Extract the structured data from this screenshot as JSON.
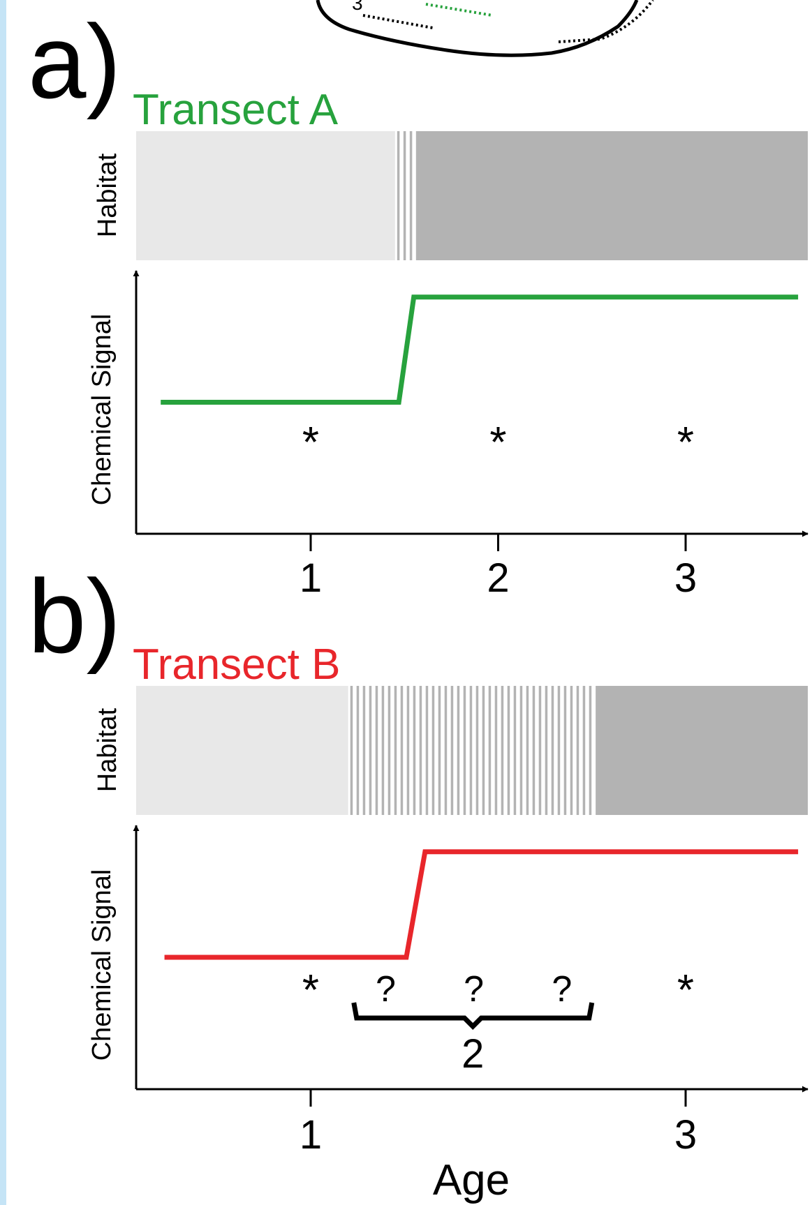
{
  "colors": {
    "side_bar": "#c5e4f6",
    "habitat_light": "#e8e8e8",
    "habitat_dark": "#b3b3b3",
    "transect_a": "#27a23d",
    "transect_b": "#e8262b"
  },
  "map_fragment": {
    "visible_label": "3",
    "icon": "seafloor-map-outline-icon"
  },
  "panels": [
    {
      "letter": "a)",
      "title": "Transect A",
      "habitat_label": "Habitat",
      "signal_label": "Chemical Signal",
      "habitat": {
        "light_until": 1.45,
        "transition_until": 1.57,
        "note": ""
      },
      "signal": {
        "low_level": 0.5,
        "high_level": 0.9,
        "start": 0.2,
        "step_start": 1.47,
        "step_end": 1.55,
        "end": 3.6
      },
      "asterisks": [
        {
          "age": 1,
          "text": "*"
        },
        {
          "age": 2,
          "text": "*"
        },
        {
          "age": 3,
          "text": "*"
        }
      ],
      "question_marks": [],
      "x_ticks": [
        {
          "age": 1,
          "label": "1"
        },
        {
          "age": 2,
          "label": "2"
        },
        {
          "age": 3,
          "label": "3"
        }
      ]
    },
    {
      "letter": "b)",
      "title": "Transect B",
      "habitat_label": "Habitat",
      "signal_label": "Chemical Signal",
      "habitat": {
        "light_until": 1.2,
        "transition_until": 2.52,
        "note": ""
      },
      "signal": {
        "low_level": 0.5,
        "high_level": 0.9,
        "start": 0.22,
        "step_start": 1.51,
        "step_end": 1.61,
        "end": 3.6
      },
      "asterisks": [
        {
          "age": 1,
          "text": "*"
        },
        {
          "age": 3,
          "text": "*"
        }
      ],
      "question_marks": [
        {
          "age": 1.4,
          "text": "?"
        },
        {
          "age": 1.87,
          "text": "?"
        },
        {
          "age": 2.34,
          "text": "?"
        }
      ],
      "brace": {
        "from": 1.23,
        "to": 2.5,
        "label": "2"
      },
      "x_ticks": [
        {
          "age": 1,
          "label": "1"
        },
        {
          "age": 3,
          "label": "3"
        }
      ],
      "x_axis_title": "Age"
    }
  ]
}
